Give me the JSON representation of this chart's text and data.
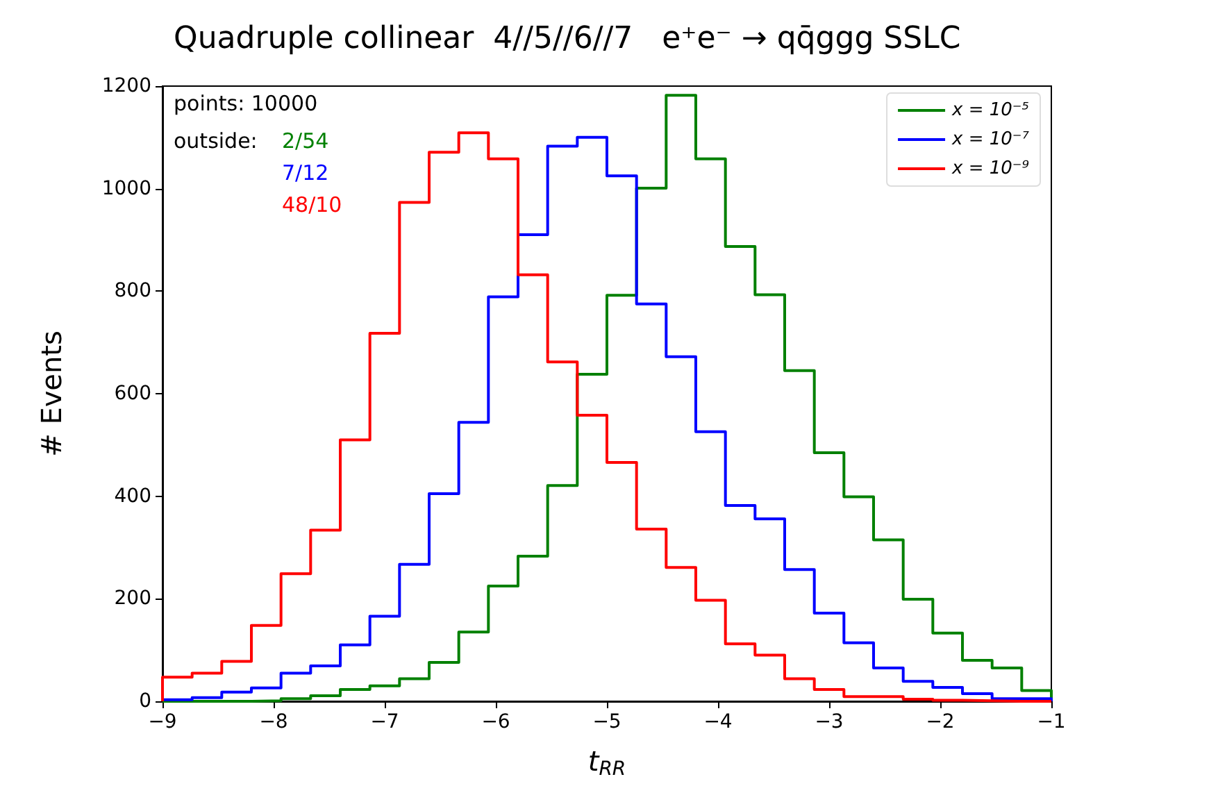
{
  "chart_data": {
    "type": "histogram",
    "title": "Quadruple collinear  4//5//6//7   e⁺e⁻ → qq̄ggg SSLC",
    "xlabel": "t$_{RR}$",
    "ylabel": "# Events",
    "annotations": [
      "points: 10000",
      "outside:",
      "2/54",
      "7/12",
      "48/10"
    ],
    "bins": [
      -9,
      -8.7333,
      -8.4667,
      -8.2,
      -7.9333,
      -7.6667,
      -7.4,
      -7.1333,
      -6.8667,
      -6.6,
      -6.3333,
      -6.0667,
      -5.8,
      -5.5333,
      -5.2667,
      -5,
      -4.7333,
      -4.4667,
      -4.2,
      -3.9333,
      -3.6667,
      -3.4,
      -3.1333,
      -2.8667,
      -2.6,
      -2.3333,
      -2.0667,
      -1.8,
      -1.5333,
      -1.2667,
      -1
    ],
    "series": [
      {
        "name": "x = 10⁻⁵",
        "color": "#008000",
        "values": [
          0,
          0,
          0,
          1,
          5,
          11,
          23,
          30,
          44,
          76,
          135,
          225,
          283,
          421,
          638,
          792,
          1001,
          1182,
          1058,
          887,
          793,
          645,
          485,
          399,
          315,
          199,
          133,
          80,
          65,
          21
        ]
      },
      {
        "name": "x = 10⁻⁷",
        "color": "#0000ff",
        "values": [
          3,
          7,
          18,
          26,
          55,
          69,
          110,
          166,
          267,
          405,
          544,
          789,
          910,
          1083,
          1100,
          1025,
          775,
          672,
          526,
          382,
          356,
          257,
          172,
          114,
          65,
          39,
          27,
          15,
          5,
          5
        ]
      },
      {
        "name": "x = 10⁻⁹",
        "color": "#ff0000",
        "values": [
          47,
          55,
          78,
          148,
          249,
          334,
          510,
          718,
          973,
          1071,
          1109,
          1058,
          832,
          662,
          558,
          466,
          336,
          261,
          197,
          112,
          90,
          44,
          23,
          9,
          9,
          4,
          2,
          1,
          0,
          0
        ]
      }
    ],
    "xlim": [
      -9,
      -1
    ],
    "xticks": [
      -9,
      -8,
      -7,
      -6,
      -5,
      -4,
      -3,
      -2,
      -1
    ],
    "ylim": [
      0,
      1200
    ],
    "yticks": [
      0,
      200,
      400,
      600,
      800,
      1000,
      1200
    ],
    "grid": false,
    "legend": "top right",
    "line_style": "solid",
    "marker": "none"
  }
}
